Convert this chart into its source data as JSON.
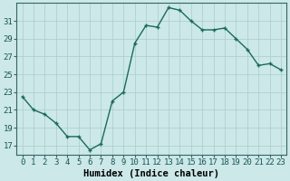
{
  "x": [
    0,
    1,
    2,
    3,
    4,
    5,
    6,
    7,
    8,
    9,
    10,
    11,
    12,
    13,
    14,
    15,
    16,
    17,
    18,
    19,
    20,
    21,
    22,
    23
  ],
  "y": [
    22.5,
    21.0,
    20.5,
    19.5,
    18.0,
    18.0,
    16.5,
    17.2,
    22.0,
    23.0,
    28.5,
    30.5,
    30.3,
    32.5,
    32.2,
    31.0,
    30.0,
    30.0,
    30.2,
    29.0,
    27.8,
    26.0,
    26.2,
    25.5
  ],
  "line_color": "#1a6b5a",
  "marker": "+",
  "marker_color": "#1a6b5a",
  "bg_color": "#cce8e8",
  "plot_bg_color": "#cce8e8",
  "grid_color": "#aacccc",
  "xlabel": "Humidex (Indice chaleur)",
  "xlim": [
    -0.5,
    23.5
  ],
  "ylim": [
    16.0,
    33.0
  ],
  "yticks": [
    17,
    19,
    21,
    23,
    25,
    27,
    29,
    31
  ],
  "xticks": [
    0,
    1,
    2,
    3,
    4,
    5,
    6,
    7,
    8,
    9,
    10,
    11,
    12,
    13,
    14,
    15,
    16,
    17,
    18,
    19,
    20,
    21,
    22,
    23
  ],
  "xlabel_fontsize": 7.5,
  "tick_fontsize": 6.5,
  "linewidth": 1.0,
  "markersize": 3.5
}
